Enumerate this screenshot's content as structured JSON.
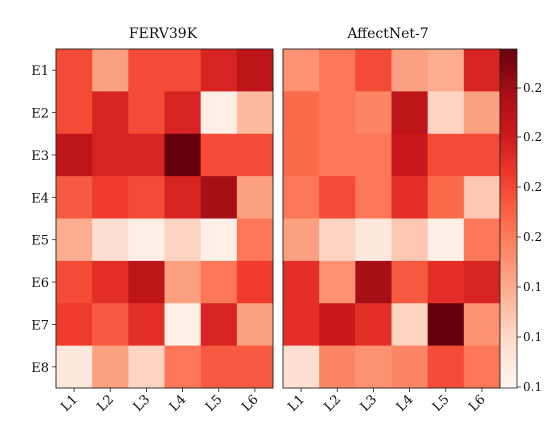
{
  "chart_data": {
    "type": "heatmap",
    "colormap": "Reds",
    "row_labels": [
      "E1",
      "E2",
      "E3",
      "E4",
      "E5",
      "E6",
      "E7",
      "E8"
    ],
    "col_labels": [
      "L1",
      "L2",
      "L3",
      "L4",
      "L5",
      "L6"
    ],
    "colorbar": {
      "ticks": [
        "0.2",
        "0.2",
        "0.2",
        "0.2",
        "0.1",
        "0.1",
        "0.1"
      ],
      "vmin": 0.05,
      "vmax": 0.29
    },
    "panels": [
      {
        "title": "FERV39K",
        "values": [
          [
            0.19,
            0.13,
            0.19,
            0.19,
            0.22,
            0.24
          ],
          [
            0.19,
            0.22,
            0.19,
            0.22,
            0.06,
            0.11
          ],
          [
            0.24,
            0.22,
            0.22,
            0.29,
            0.19,
            0.19
          ],
          [
            0.18,
            0.2,
            0.19,
            0.22,
            0.26,
            0.13
          ],
          [
            0.12,
            0.08,
            0.06,
            0.09,
            0.06,
            0.16
          ],
          [
            0.19,
            0.21,
            0.24,
            0.13,
            0.16,
            0.2
          ],
          [
            0.2,
            0.18,
            0.21,
            0.06,
            0.22,
            0.13
          ],
          [
            0.07,
            0.13,
            0.09,
            0.16,
            0.18,
            0.18
          ]
        ]
      },
      {
        "title": "AffectNet-7",
        "values": [
          [
            0.14,
            0.16,
            0.19,
            0.13,
            0.12,
            0.22
          ],
          [
            0.17,
            0.16,
            0.15,
            0.24,
            0.09,
            0.13
          ],
          [
            0.17,
            0.16,
            0.16,
            0.23,
            0.19,
            0.19
          ],
          [
            0.16,
            0.19,
            0.16,
            0.21,
            0.17,
            0.1
          ],
          [
            0.13,
            0.09,
            0.07,
            0.1,
            0.06,
            0.16
          ],
          [
            0.21,
            0.14,
            0.26,
            0.18,
            0.21,
            0.22
          ],
          [
            0.21,
            0.23,
            0.21,
            0.09,
            0.29,
            0.14
          ],
          [
            0.08,
            0.15,
            0.14,
            0.15,
            0.19,
            0.16
          ]
        ]
      }
    ]
  }
}
